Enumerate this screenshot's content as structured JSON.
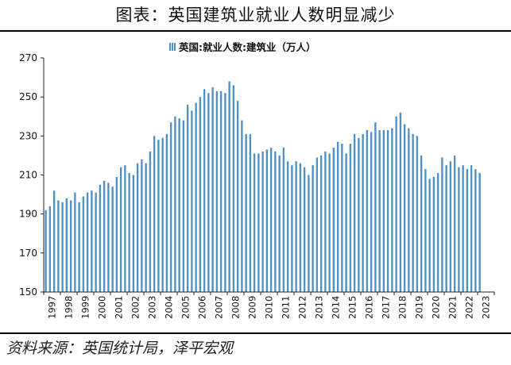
{
  "figure_title": "图表：英国建筑业就业人数明显减少",
  "source_note": "资料来源：英国统计局，泽平宏观",
  "chart_data": {
    "type": "bar",
    "legend": "英国:就业人数:建筑业（万人）",
    "legend_position": "top-center",
    "color": "#4f91c4",
    "grid": false,
    "ylim": [
      150,
      270
    ],
    "yticks": [
      150,
      170,
      190,
      210,
      230,
      250,
      270
    ],
    "xticks": [
      "1997",
      "1998",
      "1999",
      "2000",
      "2001",
      "2002",
      "2003",
      "2004",
      "2005",
      "2006",
      "2007",
      "2008",
      "2009",
      "2010",
      "2011",
      "2012",
      "2013",
      "2014",
      "2015",
      "2016",
      "2017",
      "2018",
      "2019",
      "2020",
      "2021",
      "2022",
      "2023"
    ],
    "periods_per_year": 4,
    "x_start": "1997 Q1",
    "values": [
      192,
      194,
      202,
      197,
      196,
      198,
      197,
      201,
      196,
      199,
      201,
      202,
      201,
      205,
      207,
      206,
      204,
      209,
      214,
      215,
      211,
      210,
      216,
      218,
      216,
      222,
      230,
      228,
      229,
      231,
      237,
      240,
      239,
      238,
      246,
      243,
      247,
      250,
      254,
      252,
      255,
      253,
      253,
      252,
      258,
      256,
      248,
      238,
      231,
      231,
      221,
      221,
      222,
      223,
      224,
      222,
      220,
      224,
      217,
      215,
      217,
      216,
      214,
      210,
      215,
      219,
      220,
      222,
      221,
      224,
      227,
      226,
      221,
      226,
      231,
      229,
      231,
      233,
      232,
      237,
      233,
      233,
      233,
      234,
      240,
      242,
      236,
      234,
      231,
      230,
      220,
      213,
      208,
      209,
      211,
      219,
      215,
      217,
      220,
      214,
      215,
      213,
      215,
      213,
      211
    ]
  }
}
